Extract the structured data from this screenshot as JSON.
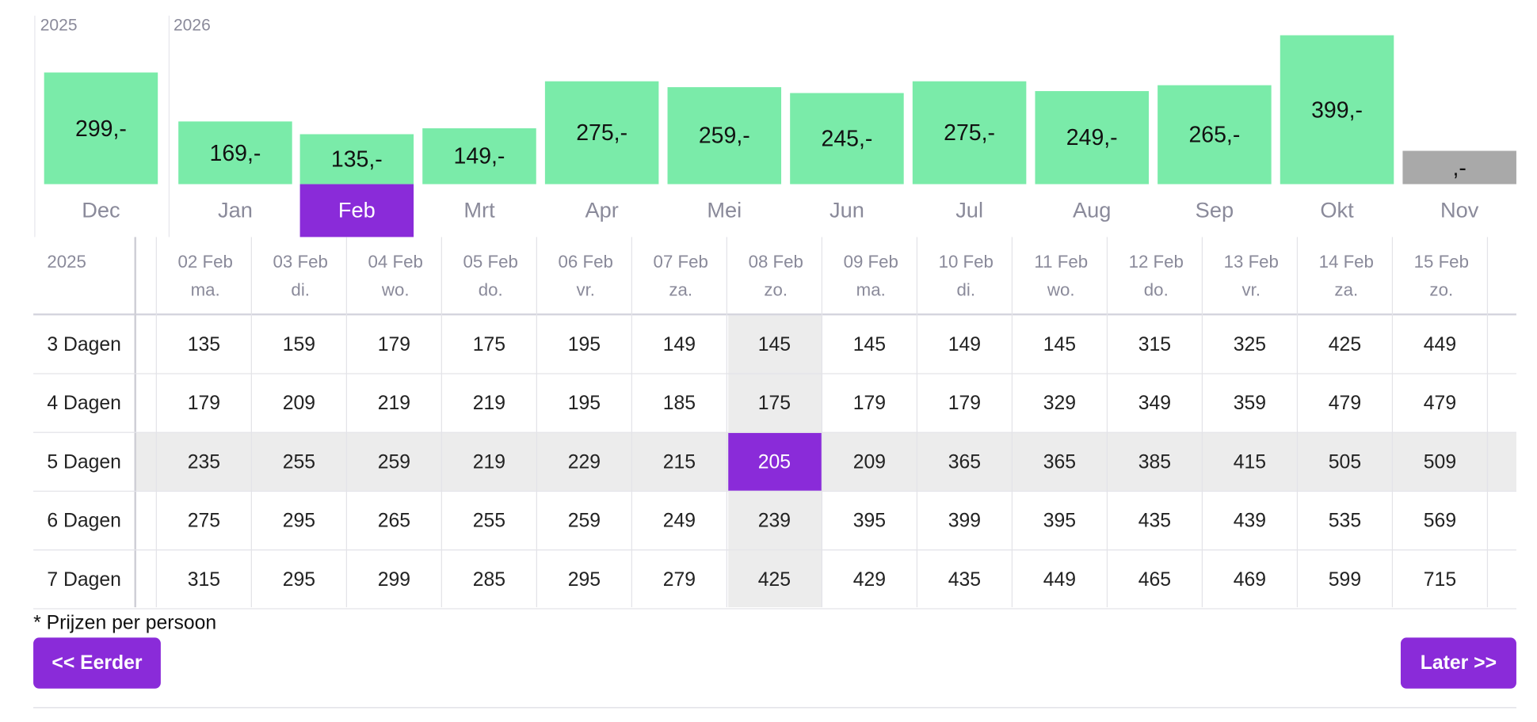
{
  "chart": {
    "years": [
      "2025",
      "2026"
    ],
    "months": [
      {
        "name": "Dec",
        "price": "299,-",
        "value": 299
      },
      {
        "name": "Jan",
        "price": "169,-",
        "value": 169
      },
      {
        "name": "Feb",
        "price": "135,-",
        "value": 135
      },
      {
        "name": "Mrt",
        "price": "149,-",
        "value": 149
      },
      {
        "name": "Apr",
        "price": "275,-",
        "value": 275
      },
      {
        "name": "Mei",
        "price": "259,-",
        "value": 259
      },
      {
        "name": "Jun",
        "price": "245,-",
        "value": 245
      },
      {
        "name": "Jul",
        "price": "275,-",
        "value": 275
      },
      {
        "name": "Aug",
        "price": "249,-",
        "value": 249
      },
      {
        "name": "Sep",
        "price": "265,-",
        "value": 265
      },
      {
        "name": "Okt",
        "price": "399,-",
        "value": 399
      },
      {
        "name": "Nov",
        "price": ",-",
        "value": null
      }
    ],
    "active_month": "Feb"
  },
  "grid": {
    "corner_year": "2025",
    "dates": [
      {
        "date": "02 Feb",
        "day": "ma."
      },
      {
        "date": "03 Feb",
        "day": "di."
      },
      {
        "date": "04 Feb",
        "day": "wo."
      },
      {
        "date": "05 Feb",
        "day": "do."
      },
      {
        "date": "06 Feb",
        "day": "vr."
      },
      {
        "date": "07 Feb",
        "day": "za."
      },
      {
        "date": "08 Feb",
        "day": "zo."
      },
      {
        "date": "09 Feb",
        "day": "ma."
      },
      {
        "date": "10 Feb",
        "day": "di."
      },
      {
        "date": "11 Feb",
        "day": "wo."
      },
      {
        "date": "12 Feb",
        "day": "do."
      },
      {
        "date": "13 Feb",
        "day": "vr."
      },
      {
        "date": "14 Feb",
        "day": "za."
      },
      {
        "date": "15 Feb",
        "day": "zo."
      }
    ],
    "rows": [
      {
        "label": "3 Dagen",
        "prices": [
          "135",
          "159",
          "179",
          "175",
          "195",
          "149",
          "145",
          "145",
          "149",
          "145",
          "315",
          "325",
          "425",
          "449"
        ]
      },
      {
        "label": "4 Dagen",
        "prices": [
          "179",
          "209",
          "219",
          "219",
          "195",
          "185",
          "175",
          "179",
          "179",
          "329",
          "349",
          "359",
          "479",
          "479"
        ]
      },
      {
        "label": "5 Dagen",
        "prices": [
          "235",
          "255",
          "259",
          "219",
          "229",
          "215",
          "205",
          "209",
          "365",
          "365",
          "385",
          "415",
          "505",
          "509"
        ]
      },
      {
        "label": "6 Dagen",
        "prices": [
          "275",
          "295",
          "265",
          "255",
          "259",
          "249",
          "239",
          "395",
          "399",
          "395",
          "435",
          "439",
          "535",
          "569"
        ]
      },
      {
        "label": "7 Dagen",
        "prices": [
          "315",
          "295",
          "299",
          "285",
          "295",
          "279",
          "425",
          "429",
          "435",
          "449",
          "465",
          "469",
          "599",
          "715"
        ]
      }
    ],
    "selected": {
      "row": "5 Dagen",
      "date": "08 Feb",
      "price": "205"
    }
  },
  "footer": {
    "note": "* Prijzen per persoon",
    "prev_label": "<< Eerder",
    "next_label": "Later >>"
  },
  "colors": {
    "accent": "#8a2bd9",
    "bar": "#7aeba9",
    "bar_empty": "#a9a9a9",
    "muted_text": "#8a8a9a"
  }
}
